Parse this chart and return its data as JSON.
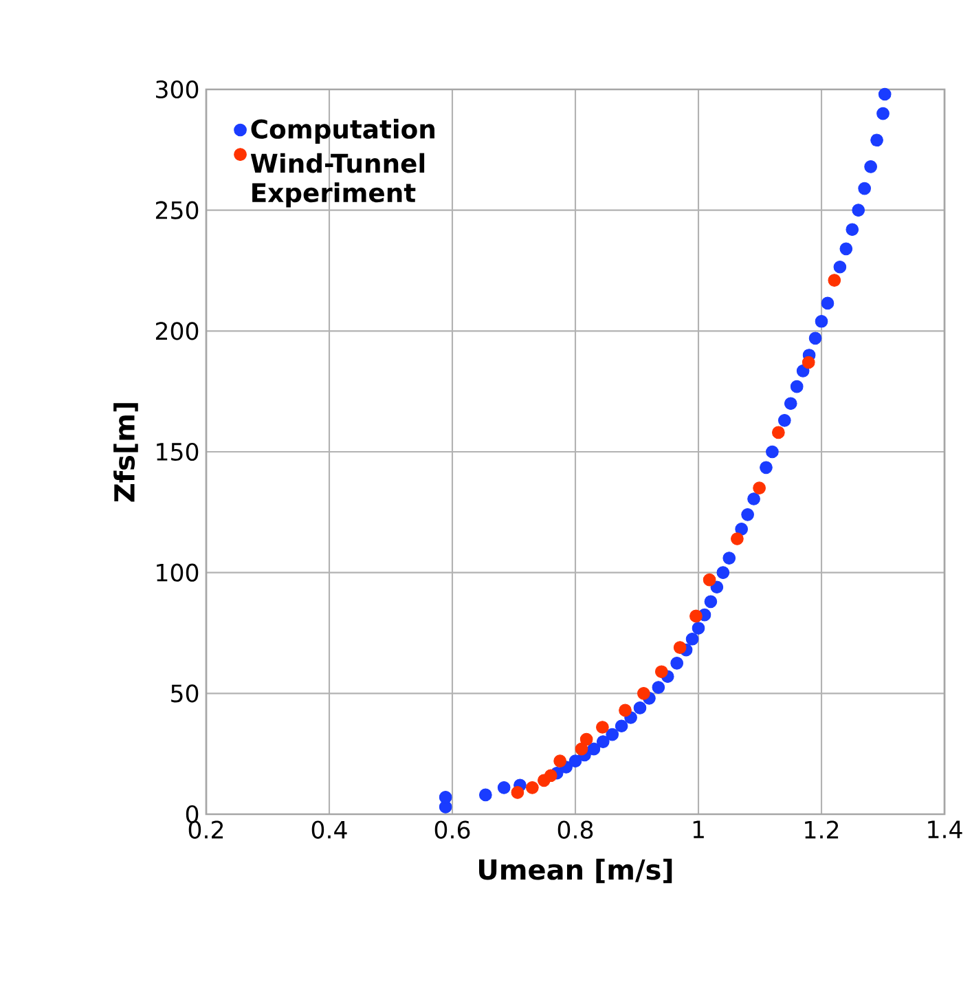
{
  "chart_data": {
    "type": "scatter",
    "xlabel": "Umean [m/s]",
    "ylabel": "Zfs[m]",
    "xlim": [
      0.2,
      1.4
    ],
    "xticks": [
      0.2,
      0.4,
      0.6,
      0.8,
      1,
      1.2,
      1.4
    ],
    "ylim": [
      0,
      300
    ],
    "yticks": [
      0,
      50,
      100,
      150,
      200,
      250,
      300
    ],
    "grid": true,
    "legend": "top left",
    "marker": "circle",
    "series": [
      {
        "name": "Computation",
        "color": "#1a3cff",
        "x": [
          0.589,
          0.589,
          0.654,
          0.684,
          0.71,
          0.77,
          0.785,
          0.8,
          0.815,
          0.83,
          0.845,
          0.86,
          0.875,
          0.89,
          0.905,
          0.92,
          0.935,
          0.95,
          0.965,
          0.98,
          0.99,
          1.0,
          1.01,
          1.02,
          1.03,
          1.04,
          1.05,
          1.07,
          1.08,
          1.09,
          1.11,
          1.12,
          1.14,
          1.15,
          1.16,
          1.17,
          1.18,
          1.19,
          1.2,
          1.21,
          1.23,
          1.24,
          1.25,
          1.26,
          1.27,
          1.28,
          1.29,
          1.3,
          1.303
        ],
        "values": [
          3,
          7,
          8,
          11,
          12,
          17,
          19.5,
          22,
          24.5,
          27,
          30,
          33,
          36.5,
          40,
          44,
          48,
          52.5,
          57,
          62.5,
          68,
          72.5,
          77,
          82.5,
          88,
          94,
          100,
          106,
          118,
          124,
          130.5,
          143.5,
          150,
          163,
          170,
          177,
          183.5,
          190,
          197,
          204,
          211.5,
          226.5,
          234,
          242,
          250,
          259,
          268,
          279,
          290,
          298
        ]
      },
      {
        "name": "Wind-Tunnel Experiment",
        "color": "#ff3300",
        "x": [
          0.706,
          0.73,
          0.749,
          0.76,
          0.775,
          0.81,
          0.818,
          0.844,
          0.881,
          0.911,
          0.94,
          0.97,
          0.996,
          1.018,
          1.063,
          1.099,
          1.13,
          1.179,
          1.221
        ],
        "values": [
          9,
          11,
          14,
          16,
          22,
          27,
          31,
          36,
          43,
          50,
          59,
          69,
          82,
          97,
          114,
          135,
          158,
          187,
          221
        ]
      }
    ]
  }
}
